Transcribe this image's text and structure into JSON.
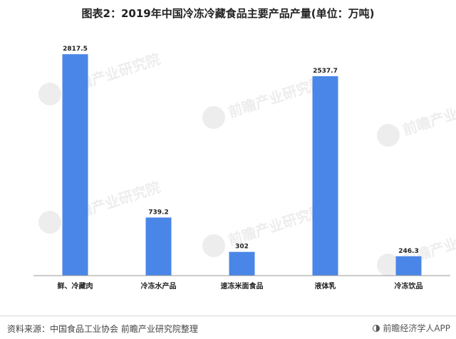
{
  "page": {
    "title": "图表2：2019年中国冷冻冷藏食品主要产品产量(单位：万吨)",
    "source": "资料来源：中国食品工业协会 前瞻产业研究院整理",
    "brand": "前瞻经济学人APP",
    "watermark": "前瞻产业研究院"
  },
  "colors": {
    "bar": "#4A86E8",
    "axis": "#999999",
    "text": "#222222"
  },
  "chart_data": {
    "type": "bar",
    "title": "图表2：2019年中国冷冻冷藏食品主要产品产量(单位：万吨)",
    "categories": [
      "鲜、冷藏肉",
      "冷冻水产品",
      "速冻米面食品",
      "液体乳",
      "冷冻饮品"
    ],
    "values": [
      2817.5,
      739.2,
      302,
      2537.7,
      246.3
    ],
    "value_labels": [
      "2817.5",
      "739.2",
      "302",
      "2537.7",
      "246.3"
    ],
    "xlabel": "",
    "ylabel": "",
    "ylim": [
      0,
      2900
    ],
    "grid": false,
    "legend": "none"
  }
}
